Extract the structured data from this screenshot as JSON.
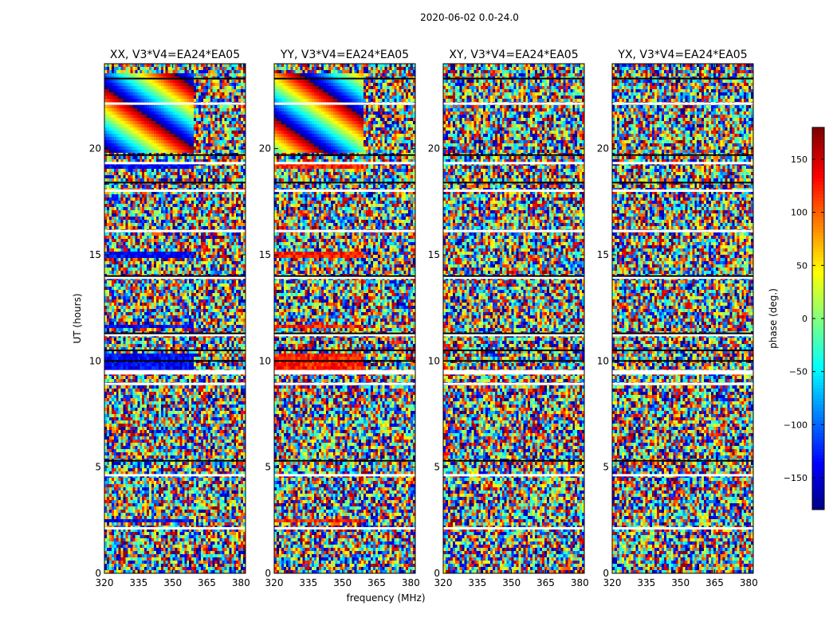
{
  "figure": {
    "suptitle": "2020-06-02 0.0-24.0",
    "xlabel": "frequency (MHz)",
    "ylabel": "UT (hours)",
    "colorbar_label": "phase (deg.)"
  },
  "chart_data": {
    "type": "heatmap",
    "panels": [
      {
        "title": "XX, V3*V4=EA24*EA05"
      },
      {
        "title": "YY, V3*V4=EA24*EA05"
      },
      {
        "title": "XY, V3*V4=EA24*EA05"
      },
      {
        "title": "YX, V3*V4=EA24*EA05"
      }
    ],
    "x_range": [
      320,
      382
    ],
    "y_range": [
      0,
      24
    ],
    "x_ticks": [
      320,
      335,
      350,
      365,
      380
    ],
    "x_tick_labels": [
      "320",
      "335",
      "350",
      "365",
      "380"
    ],
    "y_ticks": [
      0,
      5,
      10,
      15,
      20
    ],
    "y_tick_labels": [
      "0",
      "5",
      "10",
      "15",
      "20"
    ],
    "color_range": [
      -180,
      180
    ],
    "colormap": "jet",
    "colorbar_ticks": [
      150,
      100,
      50,
      0,
      -50,
      -100,
      -150
    ],
    "colorbar_tick_labels": [
      "150",
      "100",
      "50",
      "0",
      "−50",
      "−100",
      "−150"
    ],
    "white_gaps_hours": [
      2.1,
      4.6,
      8.9,
      9.4,
      9.5,
      11.2,
      13.9,
      16.1,
      18.0,
      19.3,
      22.1
    ],
    "black_lines_hours": [
      5.3,
      10.0,
      10.5,
      11.3,
      14.0,
      18.4,
      19.7,
      23.3
    ],
    "coherent_rows_xx_yy": [
      [
        2.4,
        2.55
      ],
      [
        9.5,
        10.4
      ],
      [
        11.6,
        11.75
      ],
      [
        14.9,
        15.2
      ],
      [
        19.0,
        19.3
      ],
      [
        19.8,
        23.6
      ]
    ]
  }
}
